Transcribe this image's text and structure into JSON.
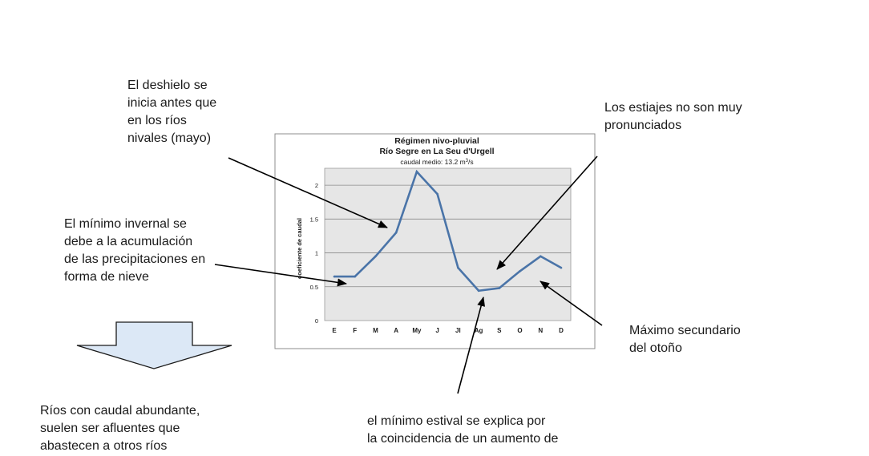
{
  "annotations": {
    "deshielo": [
      "El deshielo se",
      "inicia antes que",
      "en los ríos",
      "nivales (mayo)"
    ],
    "estiajes": [
      "Los estiajes no son muy",
      "pronunciados"
    ],
    "minimo_invernal": [
      "El mínimo invernal se",
      "debe a la acumulación",
      "de las precipitaciones en",
      "forma de nieve"
    ],
    "maximo_secundario": [
      "Máximo secundario",
      "del otoño"
    ],
    "rios_caudal": [
      "Ríos con caudal abundante,",
      "suelen ser afluentes que",
      "abastecen a otros ríos"
    ],
    "minimo_estival": [
      "el mínimo estival se explica por",
      "la coincidencia de un aumento de"
    ]
  },
  "chart_data": {
    "type": "line",
    "title": "Régimen nivo-pluvial",
    "subtitle": "Río Segre en La Seu d'Urgell",
    "caption_prefix": "caudal medio:  13.2 m",
    "caption_sup": "3",
    "caption_suffix": "/s",
    "ylabel": "coeficiente de caudal",
    "xlabel": "",
    "ylim": [
      0,
      2.25
    ],
    "yticks": [
      "0",
      "0.5",
      "1",
      "1.5",
      "2"
    ],
    "categories": [
      "E",
      "F",
      "M",
      "A",
      "My",
      "J",
      "Jl",
      "Ag",
      "S",
      "O",
      "N",
      "D"
    ],
    "series": [
      {
        "values": [
          0.65,
          0.65,
          0.95,
          1.3,
          2.2,
          1.87,
          0.78,
          0.44,
          0.48,
          0.73,
          0.95,
          0.78
        ]
      }
    ],
    "grid": true,
    "line_color": "#4a74a8",
    "plot_bg": "#e6e6e6"
  },
  "colors": {
    "arrow": "#000000",
    "block_arrow_fill": "#dce8f6",
    "block_arrow_stroke": "#1a1a1a"
  }
}
